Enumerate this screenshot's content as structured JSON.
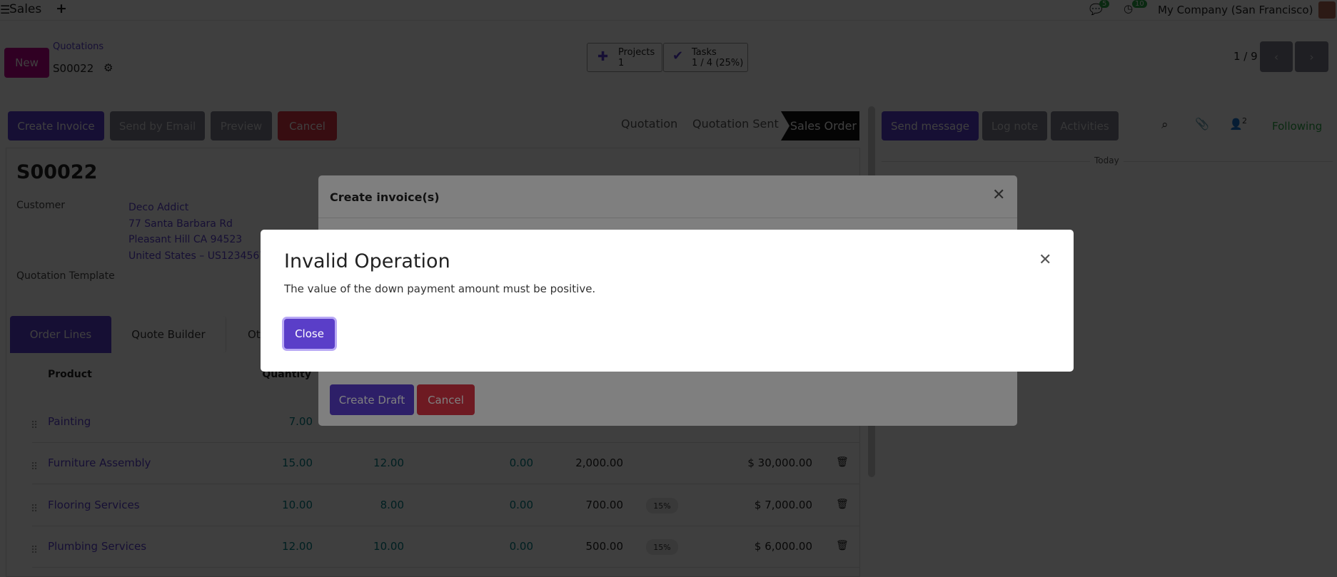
{
  "navbar": {
    "menu_icon": "hamburger-icon",
    "app_name": "Sales",
    "new_icon": "plus-icon",
    "messages_count": "5",
    "activities_count": "10",
    "company": "My Company (San Francisco)"
  },
  "control_panel": {
    "new_label": "New",
    "breadcrumb": "Quotations",
    "record": "S00022",
    "projects_label": "Projects",
    "projects_count": "1",
    "tasks_label": "Tasks",
    "tasks_value": "1 / 4 (25%)",
    "pager": "1 / 9"
  },
  "statusbar": {
    "buttons": [
      "Create Invoice",
      "Send by Email",
      "Preview",
      "Cancel"
    ],
    "stages": [
      "Quotation",
      "Quotation Sent",
      "Sales Order"
    ],
    "active_stage": "Sales Order"
  },
  "form": {
    "title": "S00022",
    "customer_label": "Customer",
    "customer_lines": [
      "Deco Addict",
      "77 Santa Barbara Rd",
      "Pleasant Hill CA 94523",
      "United States – US1234567"
    ],
    "template_label": "Quotation Template",
    "tabs": [
      "Order Lines",
      "Quote Builder",
      "Ot"
    ],
    "columns": {
      "product": "Product",
      "quantity": "Quantity"
    },
    "rows": [
      {
        "product": "Painting",
        "qty": "7.00"
      },
      {
        "product": "Furniture Assembly",
        "qty": "15.00",
        "delivered": "12.00",
        "invoiced": "0.00",
        "price": "2,000.00",
        "tax": "",
        "subtotal": "$ 30,000.00"
      },
      {
        "product": "Flooring Services",
        "qty": "10.00",
        "delivered": "8.00",
        "invoiced": "0.00",
        "price": "700.00",
        "tax": "15%",
        "subtotal": "$ 7,000.00"
      },
      {
        "product": "Plumbing Services",
        "qty": "12.00",
        "delivered": "10.00",
        "invoiced": "0.00",
        "price": "500.00",
        "tax": "15%",
        "subtotal": "$ 6,000.00"
      }
    ]
  },
  "chatter": {
    "send_message": "Send message",
    "log_note": "Log note",
    "activities": "Activities",
    "followers_count": "2",
    "following": "Following",
    "today": "Today"
  },
  "invoice_dialog": {
    "title": "Create invoice(s)",
    "create_draft": "Create Draft",
    "cancel": "Cancel"
  },
  "error_dialog": {
    "title": "Invalid Operation",
    "message": "The value of the down payment amount must be positive.",
    "close": "Close"
  },
  "colors": {
    "primary": "#5b3fd0",
    "danger": "#dc3545",
    "teal": "#017e84",
    "following": "#28a745"
  }
}
